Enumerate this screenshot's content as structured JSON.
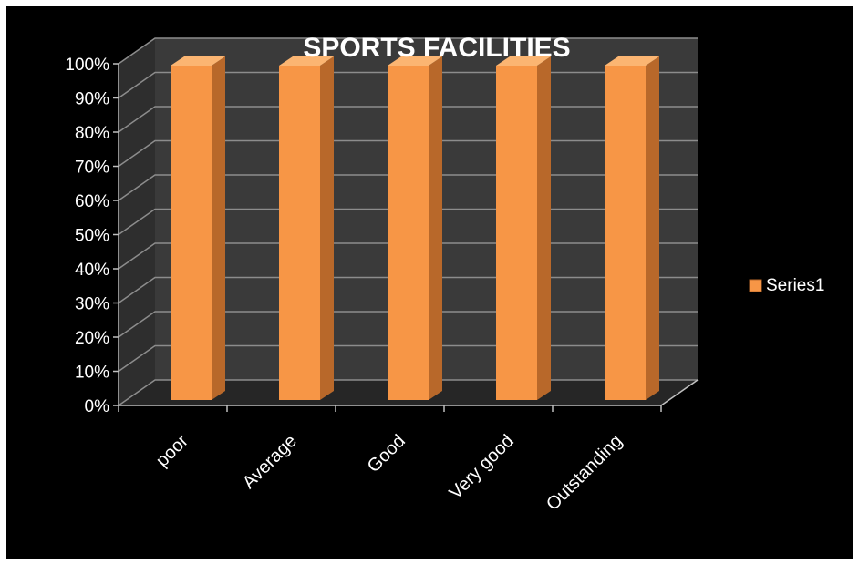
{
  "chart_data": {
    "type": "bar",
    "title": "SPORTS FACILITIES",
    "categories": [
      "poor",
      "Average",
      "Good",
      "Very good",
      "Outstanding"
    ],
    "series": [
      {
        "name": "Series1",
        "values": [
          100,
          100,
          100,
          100,
          100
        ]
      }
    ],
    "y_ticks": [
      "0%",
      "10%",
      "20%",
      "30%",
      "40%",
      "50%",
      "60%",
      "70%",
      "80%",
      "90%",
      "100%"
    ],
    "ylim": [
      0,
      100
    ],
    "unit": "%",
    "grid": true,
    "legend_position": "right",
    "style": "3d-column"
  },
  "colors": {
    "background": "#000000",
    "plot_back_wall": "#3a3a3a",
    "plot_side_wall": "#2e2e2e",
    "floor": "#262626",
    "bar_front": "#f79646",
    "bar_side": "#b8682a",
    "bar_top": "#fbb572",
    "grid_line": "#8c8c8c",
    "axis_line": "#bfbfbf",
    "text": "#ffffff"
  }
}
